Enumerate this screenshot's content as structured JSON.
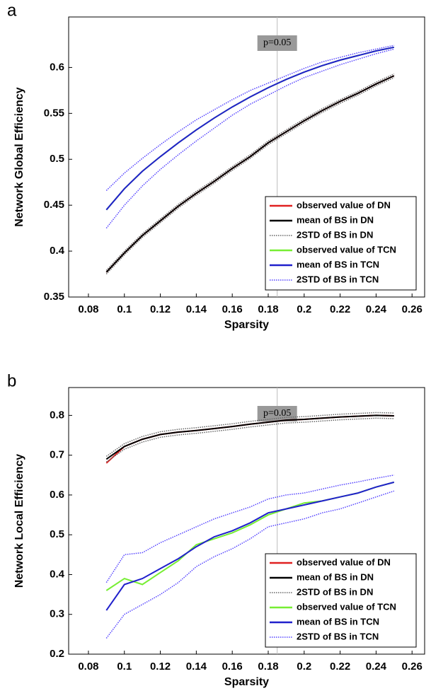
{
  "chart_data": [
    {
      "type": "line",
      "panel_label": "a",
      "x_label": "Sparsity",
      "y_label": "Network Global Efficiency",
      "annotation": "p=0.05",
      "vline_x": 0.185,
      "x": [
        0.09,
        0.1,
        0.11,
        0.12,
        0.13,
        0.14,
        0.15,
        0.16,
        0.17,
        0.18,
        0.19,
        0.2,
        0.21,
        0.22,
        0.23,
        0.24,
        0.25
      ],
      "xlim": [
        0.069,
        0.267
      ],
      "xticks": [
        0.08,
        0.1,
        0.12,
        0.14,
        0.16,
        0.18,
        0.2,
        0.22,
        0.24,
        0.26
      ],
      "ylim": [
        0.35,
        0.655
      ],
      "yticks": [
        0.35,
        0.4,
        0.45,
        0.5,
        0.55,
        0.6
      ],
      "legend": "lower right",
      "series": [
        {
          "name": "observed value of DN",
          "color": "#e02020",
          "style": "solid",
          "values": [
            0.377,
            0.398,
            0.417,
            0.433,
            0.449,
            0.463,
            0.476,
            0.49,
            0.503,
            0.518,
            0.53,
            0.542,
            0.553,
            0.563,
            0.572,
            0.582,
            0.591
          ]
        },
        {
          "name": "2STD of BS in DN",
          "color": "#666666",
          "style": "dotted",
          "values": [
            0.379,
            0.4,
            0.419,
            0.435,
            0.451,
            0.465,
            0.478,
            0.492,
            0.505,
            0.52,
            0.532,
            0.544,
            0.555,
            0.565,
            0.574,
            0.584,
            0.593
          ],
          "lower": [
            0.375,
            0.396,
            0.415,
            0.431,
            0.447,
            0.461,
            0.474,
            0.488,
            0.501,
            0.516,
            0.528,
            0.54,
            0.551,
            0.561,
            0.57,
            0.58,
            0.589
          ]
        },
        {
          "name": "mean of BS in DN",
          "color": "#000000",
          "style": "solid",
          "values": [
            0.377,
            0.398,
            0.417,
            0.433,
            0.449,
            0.463,
            0.476,
            0.49,
            0.503,
            0.518,
            0.53,
            0.542,
            0.553,
            0.563,
            0.572,
            0.582,
            0.591
          ]
        },
        {
          "name": "observed value of TCN",
          "color": "#77ee33",
          "style": "solid",
          "values": [
            0.445,
            0.468,
            0.487,
            0.503,
            0.518,
            0.532,
            0.545,
            0.557,
            0.568,
            0.578,
            0.587,
            0.595,
            0.602,
            0.608,
            0.613,
            0.618,
            0.622
          ]
        },
        {
          "name": "mean of BS in TCN",
          "color": "#2020cc",
          "style": "solid",
          "values": [
            0.445,
            0.468,
            0.487,
            0.503,
            0.518,
            0.532,
            0.545,
            0.557,
            0.568,
            0.578,
            0.587,
            0.595,
            0.602,
            0.608,
            0.613,
            0.618,
            0.622
          ]
        },
        {
          "name": "2STD of BS in TCN",
          "color": "#5544ff",
          "style": "dotted",
          "values": [
            0.466,
            0.485,
            0.501,
            0.516,
            0.53,
            0.543,
            0.554,
            0.565,
            0.575,
            0.583,
            0.591,
            0.599,
            0.606,
            0.611,
            0.616,
            0.62,
            0.624
          ],
          "lower": [
            0.425,
            0.45,
            0.471,
            0.489,
            0.505,
            0.52,
            0.534,
            0.548,
            0.56,
            0.57,
            0.58,
            0.589,
            0.596,
            0.603,
            0.609,
            0.615,
            0.62
          ]
        }
      ],
      "legend_order": [
        0,
        2,
        1,
        3,
        4,
        5
      ]
    },
    {
      "type": "line",
      "panel_label": "b",
      "x_label": "Sparsity",
      "y_label": "Network Local Efficiency",
      "annotation": "p=0.05",
      "vline_x": 0.185,
      "x": [
        0.09,
        0.1,
        0.11,
        0.12,
        0.13,
        0.14,
        0.15,
        0.16,
        0.17,
        0.18,
        0.19,
        0.2,
        0.21,
        0.22,
        0.23,
        0.24,
        0.25
      ],
      "xlim": [
        0.069,
        0.267
      ],
      "xticks": [
        0.08,
        0.1,
        0.12,
        0.14,
        0.16,
        0.18,
        0.2,
        0.22,
        0.24,
        0.26
      ],
      "ylim": [
        0.2,
        0.87
      ],
      "yticks": [
        0.2,
        0.3,
        0.4,
        0.5,
        0.6,
        0.7,
        0.8
      ],
      "legend": "lower right",
      "series": [
        {
          "name": "observed value of DN",
          "color": "#e02020",
          "style": "solid",
          "values": [
            0.68,
            0.722,
            0.74,
            0.752,
            0.758,
            0.762,
            0.767,
            0.772,
            0.778,
            0.783,
            0.788,
            0.79,
            0.793,
            0.796,
            0.798,
            0.8,
            0.799
          ]
        },
        {
          "name": "2STD of BS in DN",
          "color": "#666666",
          "style": "dotted",
          "values": [
            0.697,
            0.729,
            0.747,
            0.759,
            0.765,
            0.769,
            0.774,
            0.779,
            0.785,
            0.79,
            0.795,
            0.797,
            0.8,
            0.803,
            0.805,
            0.807,
            0.806
          ],
          "lower": [
            0.683,
            0.715,
            0.733,
            0.745,
            0.751,
            0.755,
            0.76,
            0.765,
            0.771,
            0.776,
            0.781,
            0.783,
            0.786,
            0.789,
            0.791,
            0.793,
            0.792
          ]
        },
        {
          "name": "mean of BS in DN",
          "color": "#000000",
          "style": "solid",
          "values": [
            0.69,
            0.722,
            0.74,
            0.752,
            0.758,
            0.762,
            0.767,
            0.772,
            0.778,
            0.783,
            0.788,
            0.79,
            0.793,
            0.796,
            0.798,
            0.8,
            0.799
          ]
        },
        {
          "name": "observed value of TCN",
          "color": "#77ee33",
          "style": "solid",
          "values": [
            0.36,
            0.39,
            0.375,
            0.405,
            0.435,
            0.475,
            0.49,
            0.505,
            0.525,
            0.55,
            0.565,
            0.58,
            0.585,
            0.595,
            0.605,
            0.62,
            0.632
          ]
        },
        {
          "name": "mean of BS in TCN",
          "color": "#2020cc",
          "style": "solid",
          "values": [
            0.31,
            0.375,
            0.39,
            0.415,
            0.44,
            0.47,
            0.495,
            0.51,
            0.53,
            0.555,
            0.565,
            0.575,
            0.585,
            0.595,
            0.605,
            0.62,
            0.632
          ]
        },
        {
          "name": "2STD of BS in TCN",
          "color": "#5544ff",
          "style": "dotted",
          "values": [
            0.38,
            0.45,
            0.455,
            0.48,
            0.5,
            0.52,
            0.54,
            0.555,
            0.57,
            0.59,
            0.6,
            0.605,
            0.615,
            0.625,
            0.633,
            0.642,
            0.65
          ],
          "lower": [
            0.24,
            0.3,
            0.325,
            0.35,
            0.38,
            0.42,
            0.445,
            0.465,
            0.49,
            0.52,
            0.53,
            0.54,
            0.555,
            0.565,
            0.58,
            0.595,
            0.61
          ]
        }
      ],
      "legend_order": [
        0,
        2,
        1,
        3,
        4,
        5
      ]
    }
  ]
}
